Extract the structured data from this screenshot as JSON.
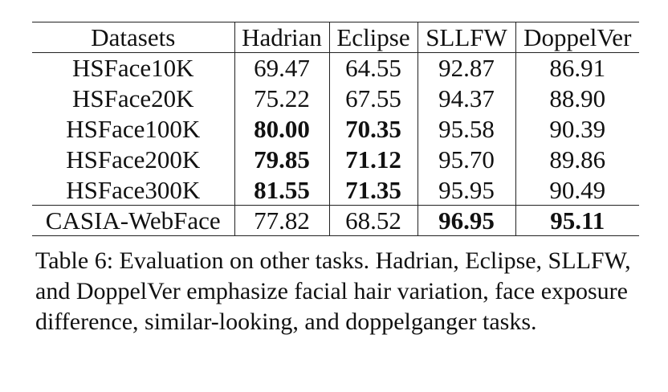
{
  "table": {
    "headers": [
      "Datasets",
      "Hadrian",
      "Eclipse",
      "SLLFW",
      "DoppelVer"
    ],
    "rows": [
      {
        "cells": [
          "HSFace10K",
          "69.47",
          "64.55",
          "92.87",
          "86.91"
        ],
        "bold": [
          false,
          false,
          false,
          false,
          false
        ]
      },
      {
        "cells": [
          "HSFace20K",
          "75.22",
          "67.55",
          "94.37",
          "88.90"
        ],
        "bold": [
          false,
          false,
          false,
          false,
          false
        ]
      },
      {
        "cells": [
          "HSFace100K",
          "80.00",
          "70.35",
          "95.58",
          "90.39"
        ],
        "bold": [
          false,
          true,
          true,
          false,
          false
        ]
      },
      {
        "cells": [
          "HSFace200K",
          "79.85",
          "71.12",
          "95.70",
          "89.86"
        ],
        "bold": [
          false,
          true,
          true,
          false,
          false
        ]
      },
      {
        "cells": [
          "HSFace300K",
          "81.55",
          "71.35",
          "95.95",
          "90.49"
        ],
        "bold": [
          false,
          true,
          true,
          false,
          false
        ]
      },
      {
        "cells": [
          "CASIA-WebFace",
          "77.82",
          "68.52",
          "96.95",
          "95.11"
        ],
        "bold": [
          false,
          false,
          false,
          true,
          true
        ]
      }
    ]
  },
  "caption": "Table 6: Evaluation on other tasks. Hadrian, Eclipse, SLLFW, and DoppelVer emphasize facial hair variation, face exposure difference, similar-looking, and doppelganger tasks."
}
